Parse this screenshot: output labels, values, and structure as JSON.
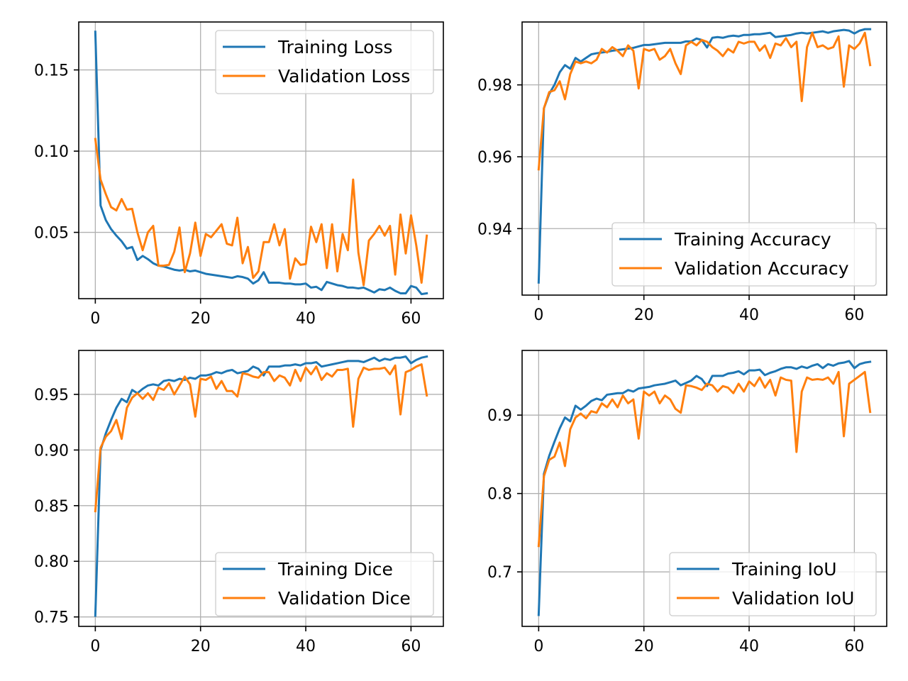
{
  "colors": {
    "training": "#1f77b4",
    "validation": "#ff7f0e",
    "grid": "#b0b0b0",
    "axes": "#000000"
  },
  "chart_data": [
    {
      "type": "line",
      "xlim": [
        -3.15,
        66.15
      ],
      "ylim": [
        0.0092,
        0.1795
      ],
      "x_ticks": [
        0,
        20,
        40,
        60
      ],
      "y_ticks": [
        0.05,
        0.1,
        0.15
      ],
      "y_tick_labels": [
        "0.05",
        "0.10",
        "0.15"
      ],
      "grid": true,
      "legend_loc": "upper right",
      "series": [
        {
          "name": "Training Loss",
          "values": [
            0.1735,
            0.0665,
            0.0575,
            0.052,
            0.048,
            0.0445,
            0.04,
            0.041,
            0.033,
            0.0355,
            0.0335,
            0.031,
            0.0295,
            0.029,
            0.028,
            0.027,
            0.0265,
            0.027,
            0.026,
            0.0265,
            0.0255,
            0.0245,
            0.024,
            0.0235,
            0.023,
            0.0225,
            0.022,
            0.023,
            0.0225,
            0.0215,
            0.0185,
            0.0205,
            0.0255,
            0.019,
            0.019,
            0.019,
            0.0185,
            0.0185,
            0.018,
            0.018,
            0.0185,
            0.016,
            0.0165,
            0.0145,
            0.0195,
            0.0185,
            0.0175,
            0.017,
            0.016,
            0.016,
            0.0155,
            0.016,
            0.0145,
            0.013,
            0.015,
            0.0145,
            0.016,
            0.014,
            0.0125,
            0.0125,
            0.017,
            0.016,
            0.012,
            0.0125
          ]
        },
        {
          "name": "Validation Loss",
          "values": [
            0.1075,
            0.0825,
            0.0735,
            0.0655,
            0.0635,
            0.0705,
            0.064,
            0.0645,
            0.05,
            0.039,
            0.05,
            0.054,
            0.0295,
            0.0295,
            0.03,
            0.038,
            0.053,
            0.0255,
            0.037,
            0.056,
            0.0355,
            0.049,
            0.047,
            0.051,
            0.055,
            0.043,
            0.042,
            0.059,
            0.031,
            0.041,
            0.022,
            0.026,
            0.044,
            0.044,
            0.055,
            0.042,
            0.052,
            0.0215,
            0.034,
            0.03,
            0.0305,
            0.0535,
            0.044,
            0.055,
            0.028,
            0.055,
            0.026,
            0.049,
            0.039,
            0.0825,
            0.0375,
            0.0175,
            0.045,
            0.049,
            0.054,
            0.048,
            0.054,
            0.024,
            0.061,
            0.037,
            0.0605,
            0.042,
            0.019,
            0.048
          ]
        }
      ]
    },
    {
      "type": "line",
      "xlim": [
        -3.15,
        66.15
      ],
      "ylim": [
        0.9215,
        0.9975
      ],
      "x_ticks": [
        0,
        20,
        40,
        60
      ],
      "y_ticks": [
        0.94,
        0.96,
        0.98
      ],
      "y_tick_labels": [
        "0.94",
        "0.96",
        "0.98"
      ],
      "grid": true,
      "legend_loc": "lower right",
      "series": [
        {
          "name": "Training Accuracy",
          "values": [
            0.925,
            0.9735,
            0.9775,
            0.98,
            0.9835,
            0.9855,
            0.9845,
            0.9875,
            0.9865,
            0.9875,
            0.9885,
            0.9888,
            0.989,
            0.9892,
            0.9895,
            0.9897,
            0.9899,
            0.9901,
            0.9903,
            0.9907,
            0.9911,
            0.9911,
            0.9913,
            0.9915,
            0.9917,
            0.9917,
            0.9917,
            0.9917,
            0.9921,
            0.9921,
            0.9929,
            0.9925,
            0.9904,
            0.9931,
            0.9933,
            0.9931,
            0.9935,
            0.9937,
            0.9935,
            0.9939,
            0.9939,
            0.9941,
            0.9941,
            0.9943,
            0.9945,
            0.9933,
            0.9935,
            0.9937,
            0.9939,
            0.9943,
            0.9945,
            0.9943,
            0.9945,
            0.9947,
            0.9949,
            0.9945,
            0.9949,
            0.9951,
            0.9953,
            0.9951,
            0.9943,
            0.9951,
            0.9955,
            0.9955
          ]
        },
        {
          "name": "Validation Accuracy",
          "values": [
            0.9565,
            0.9735,
            0.978,
            0.9785,
            0.981,
            0.976,
            0.983,
            0.9865,
            0.986,
            0.9865,
            0.986,
            0.987,
            0.99,
            0.989,
            0.9905,
            0.9895,
            0.988,
            0.991,
            0.9895,
            0.979,
            0.99,
            0.9895,
            0.99,
            0.987,
            0.988,
            0.99,
            0.986,
            0.983,
            0.991,
            0.992,
            0.991,
            0.9925,
            0.992,
            0.9905,
            0.9895,
            0.988,
            0.99,
            0.989,
            0.992,
            0.9915,
            0.992,
            0.992,
            0.9895,
            0.991,
            0.9875,
            0.9915,
            0.991,
            0.993,
            0.9905,
            0.992,
            0.9755,
            0.9905,
            0.9945,
            0.9905,
            0.991,
            0.99,
            0.9905,
            0.9935,
            0.9795,
            0.991,
            0.99,
            0.9915,
            0.9945,
            0.9855
          ]
        }
      ]
    },
    {
      "type": "line",
      "xlim": [
        -3.15,
        66.15
      ],
      "ylim": [
        0.7415,
        0.9895
      ],
      "x_ticks": [
        0,
        20,
        40,
        60
      ],
      "y_ticks": [
        0.75,
        0.8,
        0.85,
        0.9,
        0.95
      ],
      "y_tick_labels": [
        "0.75",
        "0.80",
        "0.85",
        "0.90",
        "0.95"
      ],
      "grid": true,
      "legend_loc": "lower right",
      "series": [
        {
          "name": "Training Dice",
          "values": [
            0.751,
            0.9,
            0.915,
            0.927,
            0.938,
            0.946,
            0.943,
            0.954,
            0.951,
            0.955,
            0.958,
            0.959,
            0.958,
            0.962,
            0.963,
            0.962,
            0.964,
            0.963,
            0.965,
            0.964,
            0.967,
            0.967,
            0.968,
            0.97,
            0.969,
            0.971,
            0.972,
            0.969,
            0.97,
            0.971,
            0.975,
            0.973,
            0.967,
            0.975,
            0.975,
            0.975,
            0.976,
            0.976,
            0.977,
            0.976,
            0.978,
            0.978,
            0.979,
            0.975,
            0.976,
            0.977,
            0.978,
            0.979,
            0.98,
            0.98,
            0.98,
            0.979,
            0.981,
            0.983,
            0.98,
            0.982,
            0.981,
            0.983,
            0.983,
            0.984,
            0.978,
            0.981,
            0.983,
            0.984
          ]
        },
        {
          "name": "Validation Dice",
          "values": [
            0.845,
            0.902,
            0.912,
            0.917,
            0.927,
            0.91,
            0.938,
            0.947,
            0.951,
            0.946,
            0.951,
            0.945,
            0.956,
            0.954,
            0.96,
            0.95,
            0.958,
            0.966,
            0.959,
            0.93,
            0.964,
            0.963,
            0.966,
            0.955,
            0.962,
            0.953,
            0.953,
            0.948,
            0.969,
            0.968,
            0.966,
            0.965,
            0.97,
            0.97,
            0.962,
            0.967,
            0.965,
            0.958,
            0.972,
            0.962,
            0.974,
            0.968,
            0.975,
            0.963,
            0.969,
            0.966,
            0.972,
            0.972,
            0.973,
            0.921,
            0.964,
            0.974,
            0.972,
            0.973,
            0.973,
            0.974,
            0.968,
            0.976,
            0.932,
            0.97,
            0.972,
            0.975,
            0.977,
            0.949
          ]
        }
      ]
    },
    {
      "type": "line",
      "xlim": [
        -3.15,
        66.15
      ],
      "ylim": [
        0.6305,
        0.9825
      ],
      "x_ticks": [
        0,
        20,
        40,
        60
      ],
      "y_ticks": [
        0.7,
        0.8,
        0.9
      ],
      "y_tick_labels": [
        "0.7",
        "0.8",
        "0.9"
      ],
      "grid": true,
      "legend_loc": "lower right",
      "series": [
        {
          "name": "Training IoU",
          "values": [
            0.645,
            0.825,
            0.848,
            0.866,
            0.883,
            0.897,
            0.892,
            0.912,
            0.907,
            0.912,
            0.918,
            0.921,
            0.919,
            0.926,
            0.927,
            0.928,
            0.928,
            0.932,
            0.93,
            0.934,
            0.935,
            0.936,
            0.938,
            0.939,
            0.94,
            0.942,
            0.944,
            0.938,
            0.941,
            0.944,
            0.95,
            0.946,
            0.937,
            0.95,
            0.95,
            0.95,
            0.953,
            0.954,
            0.956,
            0.952,
            0.957,
            0.957,
            0.958,
            0.951,
            0.954,
            0.956,
            0.959,
            0.961,
            0.961,
            0.959,
            0.962,
            0.96,
            0.963,
            0.965,
            0.96,
            0.965,
            0.963,
            0.966,
            0.967,
            0.969,
            0.96,
            0.965,
            0.967,
            0.968
          ]
        },
        {
          "name": "Validation IoU",
          "values": [
            0.733,
            0.822,
            0.843,
            0.847,
            0.865,
            0.835,
            0.882,
            0.897,
            0.902,
            0.896,
            0.905,
            0.903,
            0.915,
            0.91,
            0.92,
            0.91,
            0.925,
            0.915,
            0.92,
            0.87,
            0.93,
            0.925,
            0.93,
            0.915,
            0.925,
            0.92,
            0.908,
            0.903,
            0.938,
            0.937,
            0.935,
            0.932,
            0.94,
            0.938,
            0.93,
            0.937,
            0.935,
            0.928,
            0.94,
            0.93,
            0.943,
            0.937,
            0.948,
            0.935,
            0.945,
            0.925,
            0.948,
            0.945,
            0.944,
            0.853,
            0.93,
            0.948,
            0.945,
            0.946,
            0.945,
            0.948,
            0.94,
            0.955,
            0.873,
            0.94,
            0.945,
            0.95,
            0.955,
            0.904
          ]
        }
      ]
    }
  ]
}
